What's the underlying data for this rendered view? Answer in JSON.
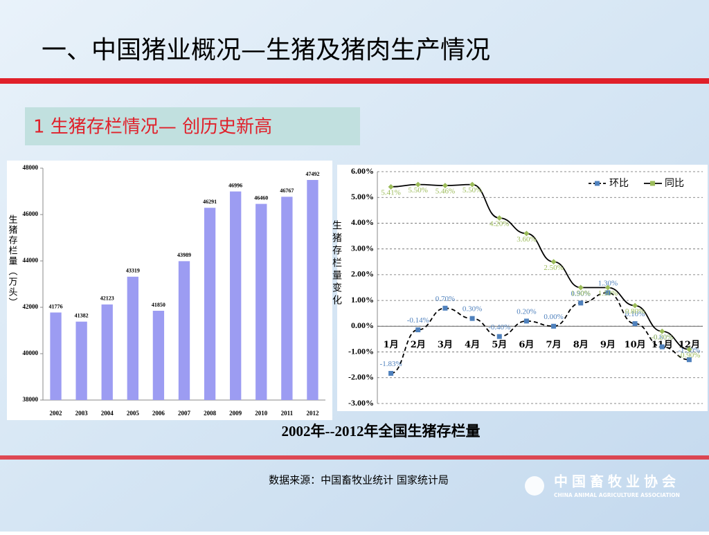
{
  "title": "一、中国猪业概况—生猪及猪肉生产情况",
  "subtitle": "1  生猪存栏情况— 创历史新高",
  "caption": "2002年--2012年全国生猪存栏量",
  "source": "数据来源：中国畜牧业统计   国家统计局",
  "logo": {
    "name": "中国畜牧业协会",
    "english": "CHINA ANIMAL AGRICULTURE ASSOCIATION"
  },
  "chart_data": [
    {
      "type": "bar",
      "y_label": "生猪存栏量（万头）",
      "categories": [
        "2002",
        "2003",
        "2004",
        "2005",
        "2006",
        "2007",
        "2008",
        "2009",
        "2010",
        "2011",
        "2012"
      ],
      "values": [
        41776,
        41382,
        42123,
        43319,
        41850,
        43989,
        46291,
        46996,
        46460,
        46767,
        47492
      ],
      "color": "#9c9cf2",
      "ylim": [
        38000,
        48000
      ],
      "yticks": [
        38000,
        40000,
        42000,
        44000,
        46000,
        48000
      ],
      "grid": false
    },
    {
      "type": "line",
      "y_label": "生猪存栏量变化",
      "categories": [
        "1月",
        "2月",
        "3月",
        "4月",
        "5月",
        "6月",
        "7月",
        "8月",
        "9月",
        "10月",
        "11月",
        "12月"
      ],
      "series": [
        {
          "name": "环比",
          "color": "#000000",
          "marker_color": "#4f81bd",
          "dashed": true,
          "values": [
            -1.83,
            -0.14,
            0.7,
            0.3,
            -0.4,
            0.2,
            0.0,
            0.9,
            1.3,
            0.1,
            -0.8,
            -1.3
          ],
          "value_labels": [
            "-1.83%",
            "-0.14%",
            "0.70%",
            "0.30%",
            "-0.40%",
            "0.20%",
            "0.00%",
            "0.90%",
            "1.30%",
            "0.10%",
            "-0.80%",
            "-1.30%"
          ]
        },
        {
          "name": "同比",
          "color": "#000000",
          "marker_color": "#9bbb59",
          "dashed": false,
          "values": [
            5.41,
            5.5,
            5.46,
            5.5,
            4.2,
            3.6,
            2.5,
            1.5,
            1.5,
            0.8,
            -0.2,
            -0.9
          ],
          "value_labels": [
            "5.41%",
            "5.50%",
            "5.46%",
            "5.50%",
            "4.20%",
            "3.60%",
            "2.50%",
            "1.50%",
            "1.50%",
            "0.80%",
            "-0.20%",
            "-0.90%"
          ]
        }
      ],
      "ylim": [
        -3,
        6
      ],
      "yticks": [
        {
          "value": -3,
          "label": "-3.00%"
        },
        {
          "value": -2,
          "label": "-2.00%"
        },
        {
          "value": -1,
          "label": "-1.00%"
        },
        {
          "value": 0,
          "label": "0.00%"
        },
        {
          "value": 1,
          "label": "1.00%"
        },
        {
          "value": 2,
          "label": "2.00%"
        },
        {
          "value": 3,
          "label": "3.00%"
        },
        {
          "value": 4,
          "label": "4.00%"
        },
        {
          "value": 5,
          "label": "5.00%"
        },
        {
          "value": 6,
          "label": "6.00%"
        }
      ],
      "grid": true,
      "legend": "top-right"
    }
  ]
}
